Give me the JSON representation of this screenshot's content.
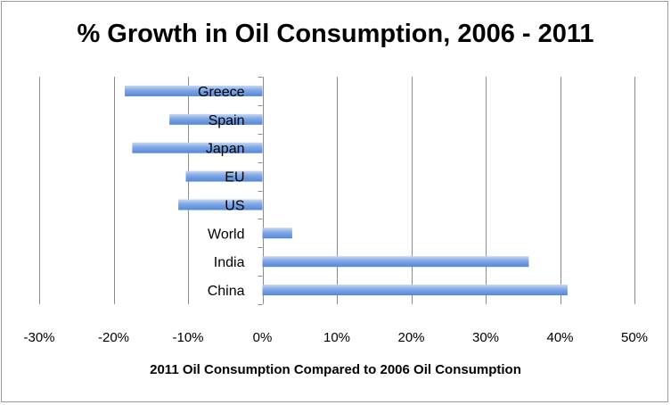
{
  "chart_data": {
    "type": "bar",
    "orientation": "horizontal",
    "title": "% Growth in Oil Consumption, 2006 - 2011",
    "xlabel": "2011 Oil Consumption Compared to 2006 Oil Consumption",
    "ylabel": "",
    "categories": [
      "Greece",
      "Spain",
      "Japan",
      "EU",
      "US",
      "World",
      "India",
      "China"
    ],
    "values": [
      -18.5,
      -12.5,
      -17.5,
      -10.3,
      -11.3,
      4.0,
      35.8,
      41.0
    ],
    "xlim": [
      -30,
      50
    ],
    "ticks": [
      -30,
      -20,
      -10,
      0,
      10,
      20,
      30,
      40,
      50
    ],
    "tick_labels": [
      "-30%",
      "-20%",
      "-10%",
      "0%",
      "10%",
      "20%",
      "30%",
      "40%",
      "50%"
    ],
    "grid": true,
    "legend": "none",
    "bar_color": "#7da7e8",
    "bar_color_light": "#b9d1f5",
    "bar_color_dark": "#5b86cc"
  }
}
